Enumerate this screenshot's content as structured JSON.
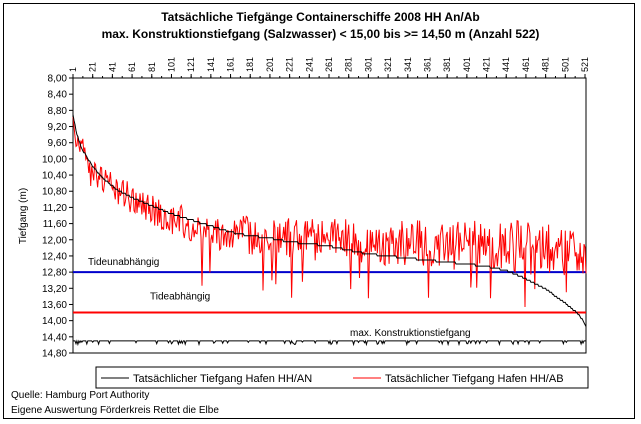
{
  "chart_data": {
    "type": "line",
    "title": "Tatsächliche Tiefgänge Containerschiffe 2008 HH An/Ab",
    "subtitle": "max. Konstruktionstiefgang (Salzwasser) < 15,00 bis >= 14,50 m (Anzahl 522)",
    "ylabel": "Tiefgang (m)",
    "xlabel": "",
    "x_ticks": [
      "1",
      "21",
      "41",
      "61",
      "81",
      "101",
      "121",
      "141",
      "161",
      "181",
      "201",
      "221",
      "241",
      "261",
      "281",
      "301",
      "321",
      "341",
      "361",
      "381",
      "401",
      "421",
      "441",
      "461",
      "481",
      "501",
      "521"
    ],
    "y_ticks": [
      "8,00",
      "8,40",
      "8,80",
      "9,20",
      "9,60",
      "10,00",
      "10,40",
      "10,80",
      "11,20",
      "11,60",
      "12,00",
      "12,40",
      "12,80",
      "13,20",
      "13,60",
      "14,00",
      "14,40",
      "14,80"
    ],
    "xlim": [
      1,
      522
    ],
    "ylim": [
      8.0,
      14.8
    ],
    "y_inverted": true,
    "x_axis_position": "top",
    "grid": false,
    "legend_position": "bottom",
    "series": [
      {
        "name": "Tatsächlicher Tiefgang Hafen HH/AN",
        "color": "#000000",
        "x": [
          1,
          5,
          10,
          20,
          30,
          45,
          60,
          80,
          100,
          120,
          140,
          160,
          180,
          200,
          220,
          240,
          260,
          280,
          300,
          320,
          340,
          360,
          380,
          400,
          420,
          440,
          460,
          480,
          500,
          510,
          515,
          520,
          522
        ],
        "values": [
          8.9,
          9.4,
          9.75,
          10.15,
          10.45,
          10.75,
          10.95,
          11.15,
          11.35,
          11.5,
          11.65,
          11.8,
          11.9,
          11.95,
          12.05,
          12.1,
          12.15,
          12.25,
          12.35,
          12.4,
          12.45,
          12.5,
          12.55,
          12.6,
          12.65,
          12.75,
          12.95,
          13.2,
          13.55,
          13.75,
          13.85,
          14.05,
          14.15
        ]
      },
      {
        "name": "Tatsächlicher Tiefgang Hafen HH/AB",
        "color": "#ff0000",
        "x": [
          1,
          20,
          60,
          100,
          150,
          200,
          250,
          300,
          350,
          400,
          450,
          500,
          522
        ],
        "values": [
          9.2,
          10.4,
          11.0,
          11.5,
          11.8,
          11.95,
          12.0,
          12.05,
          12.1,
          12.15,
          12.15,
          12.3,
          12.5
        ]
      }
    ],
    "reference_lines": [
      {
        "label": "Tideunabhängig",
        "value": 12.8,
        "color": "#0000cc"
      },
      {
        "label": "Tideabhängig",
        "value": 13.8,
        "color": "#ff0000"
      },
      {
        "label": "max. Konstruktionstiefgang",
        "value": 14.5,
        "color": "#000000"
      }
    ]
  },
  "source_notes": [
    "Quelle: Hamburg Port Authority",
    "Eigene Auswertung Förderkreis Rettet die Elbe"
  ]
}
